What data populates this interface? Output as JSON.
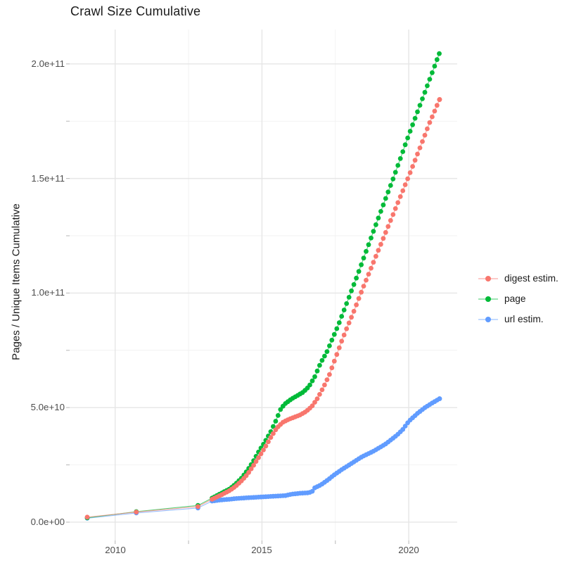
{
  "title": "Crawl Size Cumulative",
  "y_axis": {
    "label": "Pages / Unique Items Cumulative",
    "ticks": [
      "2.0e+11",
      "1.5e+11",
      "1.0e+11",
      "5.0e+10",
      "0.0e+00"
    ]
  },
  "x_axis": {
    "ticks": [
      "2010",
      "2015",
      "2020"
    ]
  },
  "legend": {
    "position": "right",
    "items": [
      {
        "label": "digest estim.",
        "color": "#F8766D"
      },
      {
        "label": "page",
        "color": "#00BA38"
      },
      {
        "label": "url estim.",
        "color": "#619CFF"
      }
    ]
  },
  "chart_data": {
    "type": "line",
    "title": "Crawl Size Cumulative",
    "xlabel": "",
    "ylabel": "Pages / Unique Items Cumulative",
    "value_units": "values_in_1e10_items",
    "axis_ranges": {
      "x": [
        2008.45,
        2021.65
      ],
      "y_e10": [
        -0.8,
        21.5
      ]
    },
    "x_major_ticks": [
      2010,
      2015,
      2020
    ],
    "x_minor_ticks": [
      2012.5,
      2017.5
    ],
    "y_major_ticks_e10": [
      0,
      5,
      10,
      15,
      20
    ],
    "y_minor_ticks_e10": [
      2.5,
      7.5,
      12.5,
      17.5
    ],
    "grid": "on",
    "legend_position": "right",
    "sampling_step_years": 0.0833,
    "series": [
      {
        "name": "digest estim.",
        "color": "#F8766D",
        "early_points": [
          [
            2009.05,
            0.22
          ],
          [
            2010.72,
            0.44
          ],
          [
            2012.82,
            0.68
          ]
        ],
        "anchors": [
          [
            2013.3,
            1.0
          ],
          [
            2013.6,
            1.18
          ],
          [
            2013.9,
            1.38
          ],
          [
            2014.1,
            1.56
          ],
          [
            2014.3,
            1.8
          ],
          [
            2014.5,
            2.08
          ],
          [
            2014.7,
            2.45
          ],
          [
            2014.9,
            2.85
          ],
          [
            2015.1,
            3.25
          ],
          [
            2015.3,
            3.7
          ],
          [
            2015.5,
            4.1
          ],
          [
            2015.7,
            4.35
          ],
          [
            2015.9,
            4.48
          ],
          [
            2016.1,
            4.58
          ],
          [
            2016.3,
            4.68
          ],
          [
            2016.5,
            4.83
          ],
          [
            2016.7,
            5.05
          ],
          [
            2016.9,
            5.42
          ],
          [
            2017.1,
            5.9
          ],
          [
            2017.3,
            6.45
          ],
          [
            2017.5,
            7.15
          ],
          [
            2017.7,
            7.85
          ],
          [
            2017.9,
            8.5
          ],
          [
            2018.1,
            9.1
          ],
          [
            2018.4,
            10.1
          ],
          [
            2018.8,
            11.35
          ],
          [
            2019.2,
            12.6
          ],
          [
            2019.6,
            13.85
          ],
          [
            2020.0,
            15.1
          ],
          [
            2020.4,
            16.4
          ],
          [
            2020.7,
            17.4
          ],
          [
            2021.05,
            18.45
          ]
        ]
      },
      {
        "name": "page",
        "color": "#00BA38",
        "early_points": [
          [
            2009.05,
            0.19
          ],
          [
            2010.72,
            0.46
          ],
          [
            2012.82,
            0.73
          ]
        ],
        "anchors": [
          [
            2013.3,
            1.05
          ],
          [
            2013.6,
            1.25
          ],
          [
            2013.9,
            1.45
          ],
          [
            2014.1,
            1.66
          ],
          [
            2014.3,
            1.92
          ],
          [
            2014.5,
            2.25
          ],
          [
            2014.7,
            2.65
          ],
          [
            2014.9,
            3.1
          ],
          [
            2015.1,
            3.5
          ],
          [
            2015.3,
            3.95
          ],
          [
            2015.5,
            4.5
          ],
          [
            2015.65,
            4.97
          ],
          [
            2015.8,
            5.18
          ],
          [
            2016.0,
            5.37
          ],
          [
            2016.2,
            5.52
          ],
          [
            2016.4,
            5.67
          ],
          [
            2016.6,
            5.92
          ],
          [
            2016.8,
            6.35
          ],
          [
            2017.0,
            6.95
          ],
          [
            2017.2,
            7.4
          ],
          [
            2017.4,
            8.0
          ],
          [
            2017.6,
            8.6
          ],
          [
            2017.9,
            9.6
          ],
          [
            2018.2,
            10.6
          ],
          [
            2018.6,
            12.0
          ],
          [
            2019.0,
            13.4
          ],
          [
            2019.5,
            15.1
          ],
          [
            2020.0,
            16.9
          ],
          [
            2020.5,
            18.6
          ],
          [
            2021.04,
            20.45
          ]
        ]
      },
      {
        "name": "url estim.",
        "color": "#619CFF",
        "early_points": [
          [
            2009.05,
            0.17
          ],
          [
            2010.72,
            0.4
          ],
          [
            2012.82,
            0.62
          ]
        ],
        "anchors": [
          [
            2013.3,
            0.92
          ],
          [
            2013.6,
            0.97
          ],
          [
            2013.9,
            1.0
          ],
          [
            2014.2,
            1.04
          ],
          [
            2014.6,
            1.07
          ],
          [
            2015.0,
            1.1
          ],
          [
            2015.4,
            1.13
          ],
          [
            2015.8,
            1.16
          ],
          [
            2016.0,
            1.22
          ],
          [
            2016.3,
            1.26
          ],
          [
            2016.55,
            1.28
          ],
          [
            2016.7,
            1.32
          ],
          [
            2016.8,
            1.5
          ],
          [
            2017.0,
            1.62
          ],
          [
            2017.25,
            1.85
          ],
          [
            2017.5,
            2.1
          ],
          [
            2017.75,
            2.32
          ],
          [
            2018.0,
            2.52
          ],
          [
            2018.4,
            2.85
          ],
          [
            2018.8,
            3.1
          ],
          [
            2019.2,
            3.4
          ],
          [
            2019.6,
            3.8
          ],
          [
            2019.8,
            4.05
          ],
          [
            2020.0,
            4.4
          ],
          [
            2020.3,
            4.75
          ],
          [
            2020.55,
            5.0
          ],
          [
            2020.8,
            5.2
          ],
          [
            2021.05,
            5.39
          ]
        ]
      }
    ]
  }
}
